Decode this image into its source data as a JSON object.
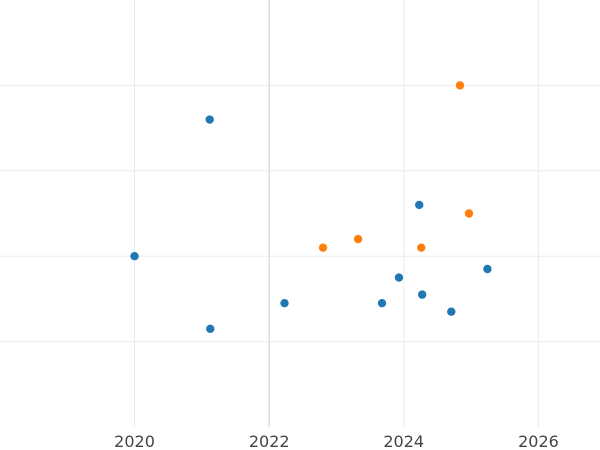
{
  "chart_data": {
    "type": "scatter",
    "title": "",
    "xlabel": "",
    "ylabel": "",
    "x_is_date": true,
    "xlim": [
      "2018-01-01",
      "2026-12-01"
    ],
    "ylim": [
      0,
      1
    ],
    "x_ticks": [
      {
        "value": "2020-01-01",
        "label": "2020"
      },
      {
        "value": "2022-01-01",
        "label": "2022"
      },
      {
        "value": "2024-01-01",
        "label": "2024"
      },
      {
        "value": "2026-01-01",
        "label": "2026"
      }
    ],
    "y_gridlines": [
      0.2,
      0.4,
      0.6,
      0.8
    ],
    "y_tick_labels_visible": false,
    "highlight_x_line": "2022-01-01",
    "grid": true,
    "legend": "none",
    "series": [
      {
        "color": "#1f77b4",
        "points": [
          {
            "x": "2020-01-01",
            "y": 0.4
          },
          {
            "x": "2021-02-12",
            "y": 0.72
          },
          {
            "x": "2021-02-15",
            "y": 0.23
          },
          {
            "x": "2022-03-25",
            "y": 0.29
          },
          {
            "x": "2023-09-05",
            "y": 0.29
          },
          {
            "x": "2023-12-06",
            "y": 0.35
          },
          {
            "x": "2024-03-25",
            "y": 0.52
          },
          {
            "x": "2024-04-10",
            "y": 0.31
          },
          {
            "x": "2024-09-15",
            "y": 0.27
          },
          {
            "x": "2025-03-30",
            "y": 0.37
          }
        ]
      },
      {
        "color": "#ff7f0e",
        "points": [
          {
            "x": "2022-10-20",
            "y": 0.42
          },
          {
            "x": "2023-04-28",
            "y": 0.44
          },
          {
            "x": "2024-04-05",
            "y": 0.42
          },
          {
            "x": "2024-11-01",
            "y": 0.8
          },
          {
            "x": "2024-12-20",
            "y": 0.5
          }
        ]
      }
    ]
  }
}
